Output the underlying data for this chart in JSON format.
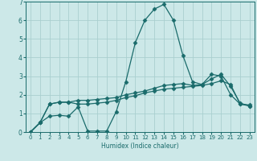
{
  "title": "",
  "xlabel": "Humidex (Indice chaleur)",
  "ylabel": "",
  "bg_color": "#cce8e8",
  "grid_color": "#aacfcf",
  "line_color": "#1a6b6b",
  "xlim": [
    -0.5,
    23.5
  ],
  "ylim": [
    0,
    7
  ],
  "x_ticks": [
    0,
    1,
    2,
    3,
    4,
    5,
    6,
    7,
    8,
    9,
    10,
    11,
    12,
    13,
    14,
    15,
    16,
    17,
    18,
    19,
    20,
    21,
    22,
    23
  ],
  "y_ticks": [
    0,
    1,
    2,
    3,
    4,
    5,
    6,
    7
  ],
  "series1_x": [
    0,
    1,
    2,
    3,
    4,
    5,
    6,
    7,
    8,
    9,
    10,
    11,
    12,
    13,
    14,
    15,
    16,
    17,
    18,
    19,
    20,
    21,
    22,
    23
  ],
  "series1_y": [
    0.0,
    0.5,
    0.85,
    0.9,
    0.85,
    1.35,
    0.05,
    0.05,
    0.05,
    1.1,
    2.7,
    4.8,
    6.0,
    6.6,
    6.85,
    6.0,
    4.1,
    2.7,
    2.55,
    3.1,
    3.0,
    2.0,
    1.5,
    1.4
  ],
  "series2_x": [
    0,
    1,
    2,
    3,
    4,
    5,
    6,
    7,
    8,
    9,
    10,
    11,
    12,
    13,
    14,
    15,
    16,
    17,
    18,
    19,
    20,
    21,
    22,
    23
  ],
  "series2_y": [
    0.0,
    0.5,
    1.5,
    1.6,
    1.6,
    1.7,
    1.7,
    1.75,
    1.8,
    1.85,
    2.0,
    2.1,
    2.2,
    2.35,
    2.5,
    2.55,
    2.6,
    2.5,
    2.55,
    2.85,
    3.1,
    2.45,
    1.55,
    1.4
  ],
  "series3_x": [
    0,
    1,
    2,
    3,
    4,
    5,
    6,
    7,
    8,
    9,
    10,
    11,
    12,
    13,
    14,
    15,
    16,
    17,
    18,
    19,
    20,
    21,
    22,
    23
  ],
  "series3_y": [
    0.0,
    0.5,
    1.5,
    1.6,
    1.6,
    1.5,
    1.5,
    1.55,
    1.6,
    1.7,
    1.85,
    1.95,
    2.1,
    2.2,
    2.3,
    2.35,
    2.4,
    2.45,
    2.5,
    2.6,
    2.75,
    2.55,
    1.5,
    1.45
  ],
  "marker": "D",
  "markersize": 2.5,
  "linewidth": 0.9
}
